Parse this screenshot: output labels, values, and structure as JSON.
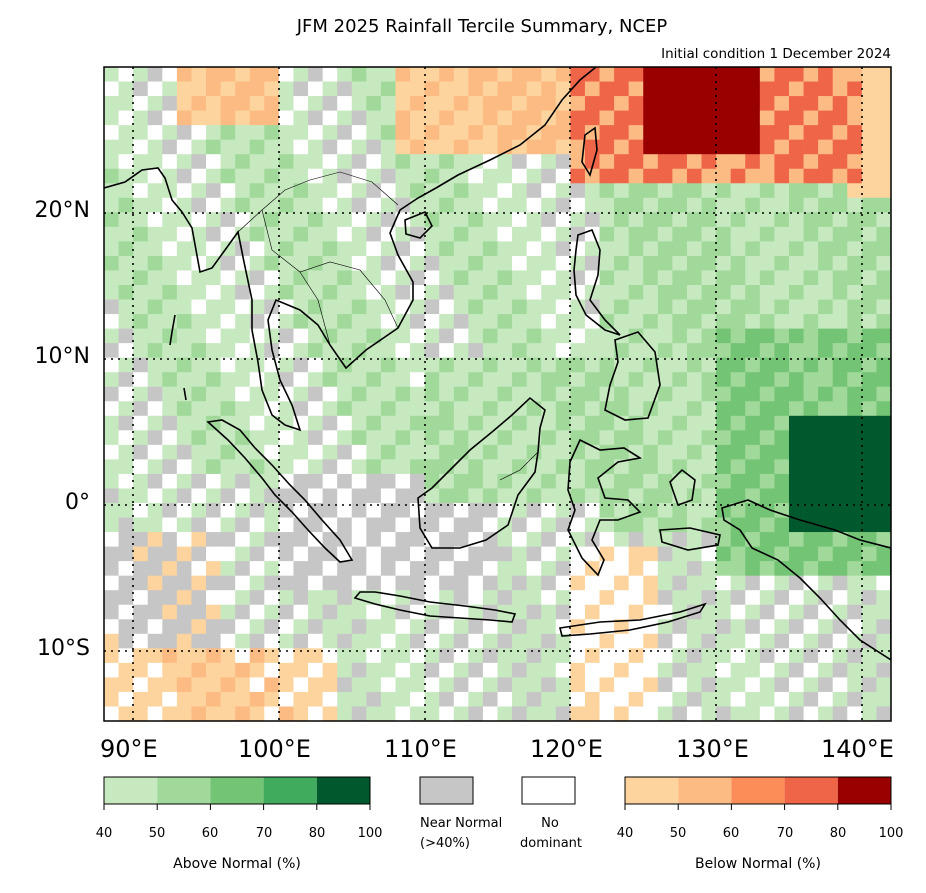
{
  "title": "JFM 2025 Rainfall Tercile Summary, NCEP",
  "subtitle": "Initial condition 1 December 2024",
  "axes": {
    "lat_labels": [
      "20°N",
      "10°N",
      "0°",
      "10°S"
    ],
    "lon_labels": [
      "90°E",
      "100°E",
      "110°E",
      "120°E",
      "130°E",
      "140°E"
    ]
  },
  "map_extent": {
    "lon": [
      88,
      142
    ],
    "lat": [
      -15,
      30
    ]
  },
  "colors": {
    "above": [
      "#c7e9c0",
      "#a1d99b",
      "#74c476",
      "#41ab5d",
      "#00592d"
    ],
    "near_normal": "#c6c6c6",
    "no_dominant": "#ffffff",
    "below": [
      "#fdd49e",
      "#fdbb84",
      "#fc8d59",
      "#ef6548",
      "#990000"
    ],
    "coast": "#000000"
  },
  "legend": {
    "above_title": "Above Normal (%)",
    "above_ticks": [
      "40",
      "50",
      "60",
      "70",
      "80",
      "100"
    ],
    "near_normal_line1": "Near Normal",
    "near_normal_line2": "(>40%)",
    "no_dominant_line1": "No",
    "no_dominant_line2": "dominant",
    "below_title": "Below Normal (%)",
    "below_ticks": [
      "40",
      "50",
      "60",
      "70",
      "80",
      "100"
    ]
  }
}
